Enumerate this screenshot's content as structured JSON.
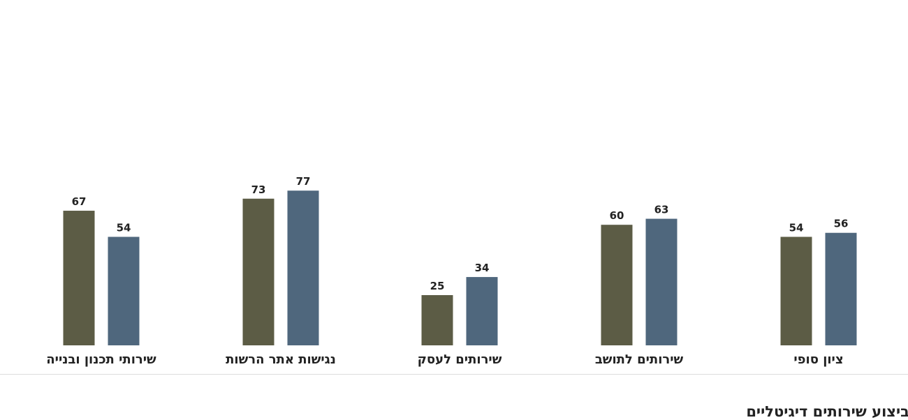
{
  "chart_data": {
    "type": "bar",
    "direction": "rtl",
    "categories": [
      "ציון סופי",
      "שירותים לתושב",
      "שירותים לעסק",
      "נגישות אתר הרשות",
      "שירותי תכנון ובנייה"
    ],
    "series": [
      {
        "values": [
          54,
          60,
          25,
          73,
          67
        ]
      },
      {
        "values": [
          56,
          63,
          34,
          77,
          54
        ]
      }
    ],
    "colors": [
      "#5c5c45",
      "#4f677d"
    ],
    "ylim": [
      0,
      100
    ],
    "grid": false,
    "title": "",
    "xlabel": "",
    "ylabel": ""
  },
  "section_heading": "ביצוע שירותים דיגיטליים"
}
